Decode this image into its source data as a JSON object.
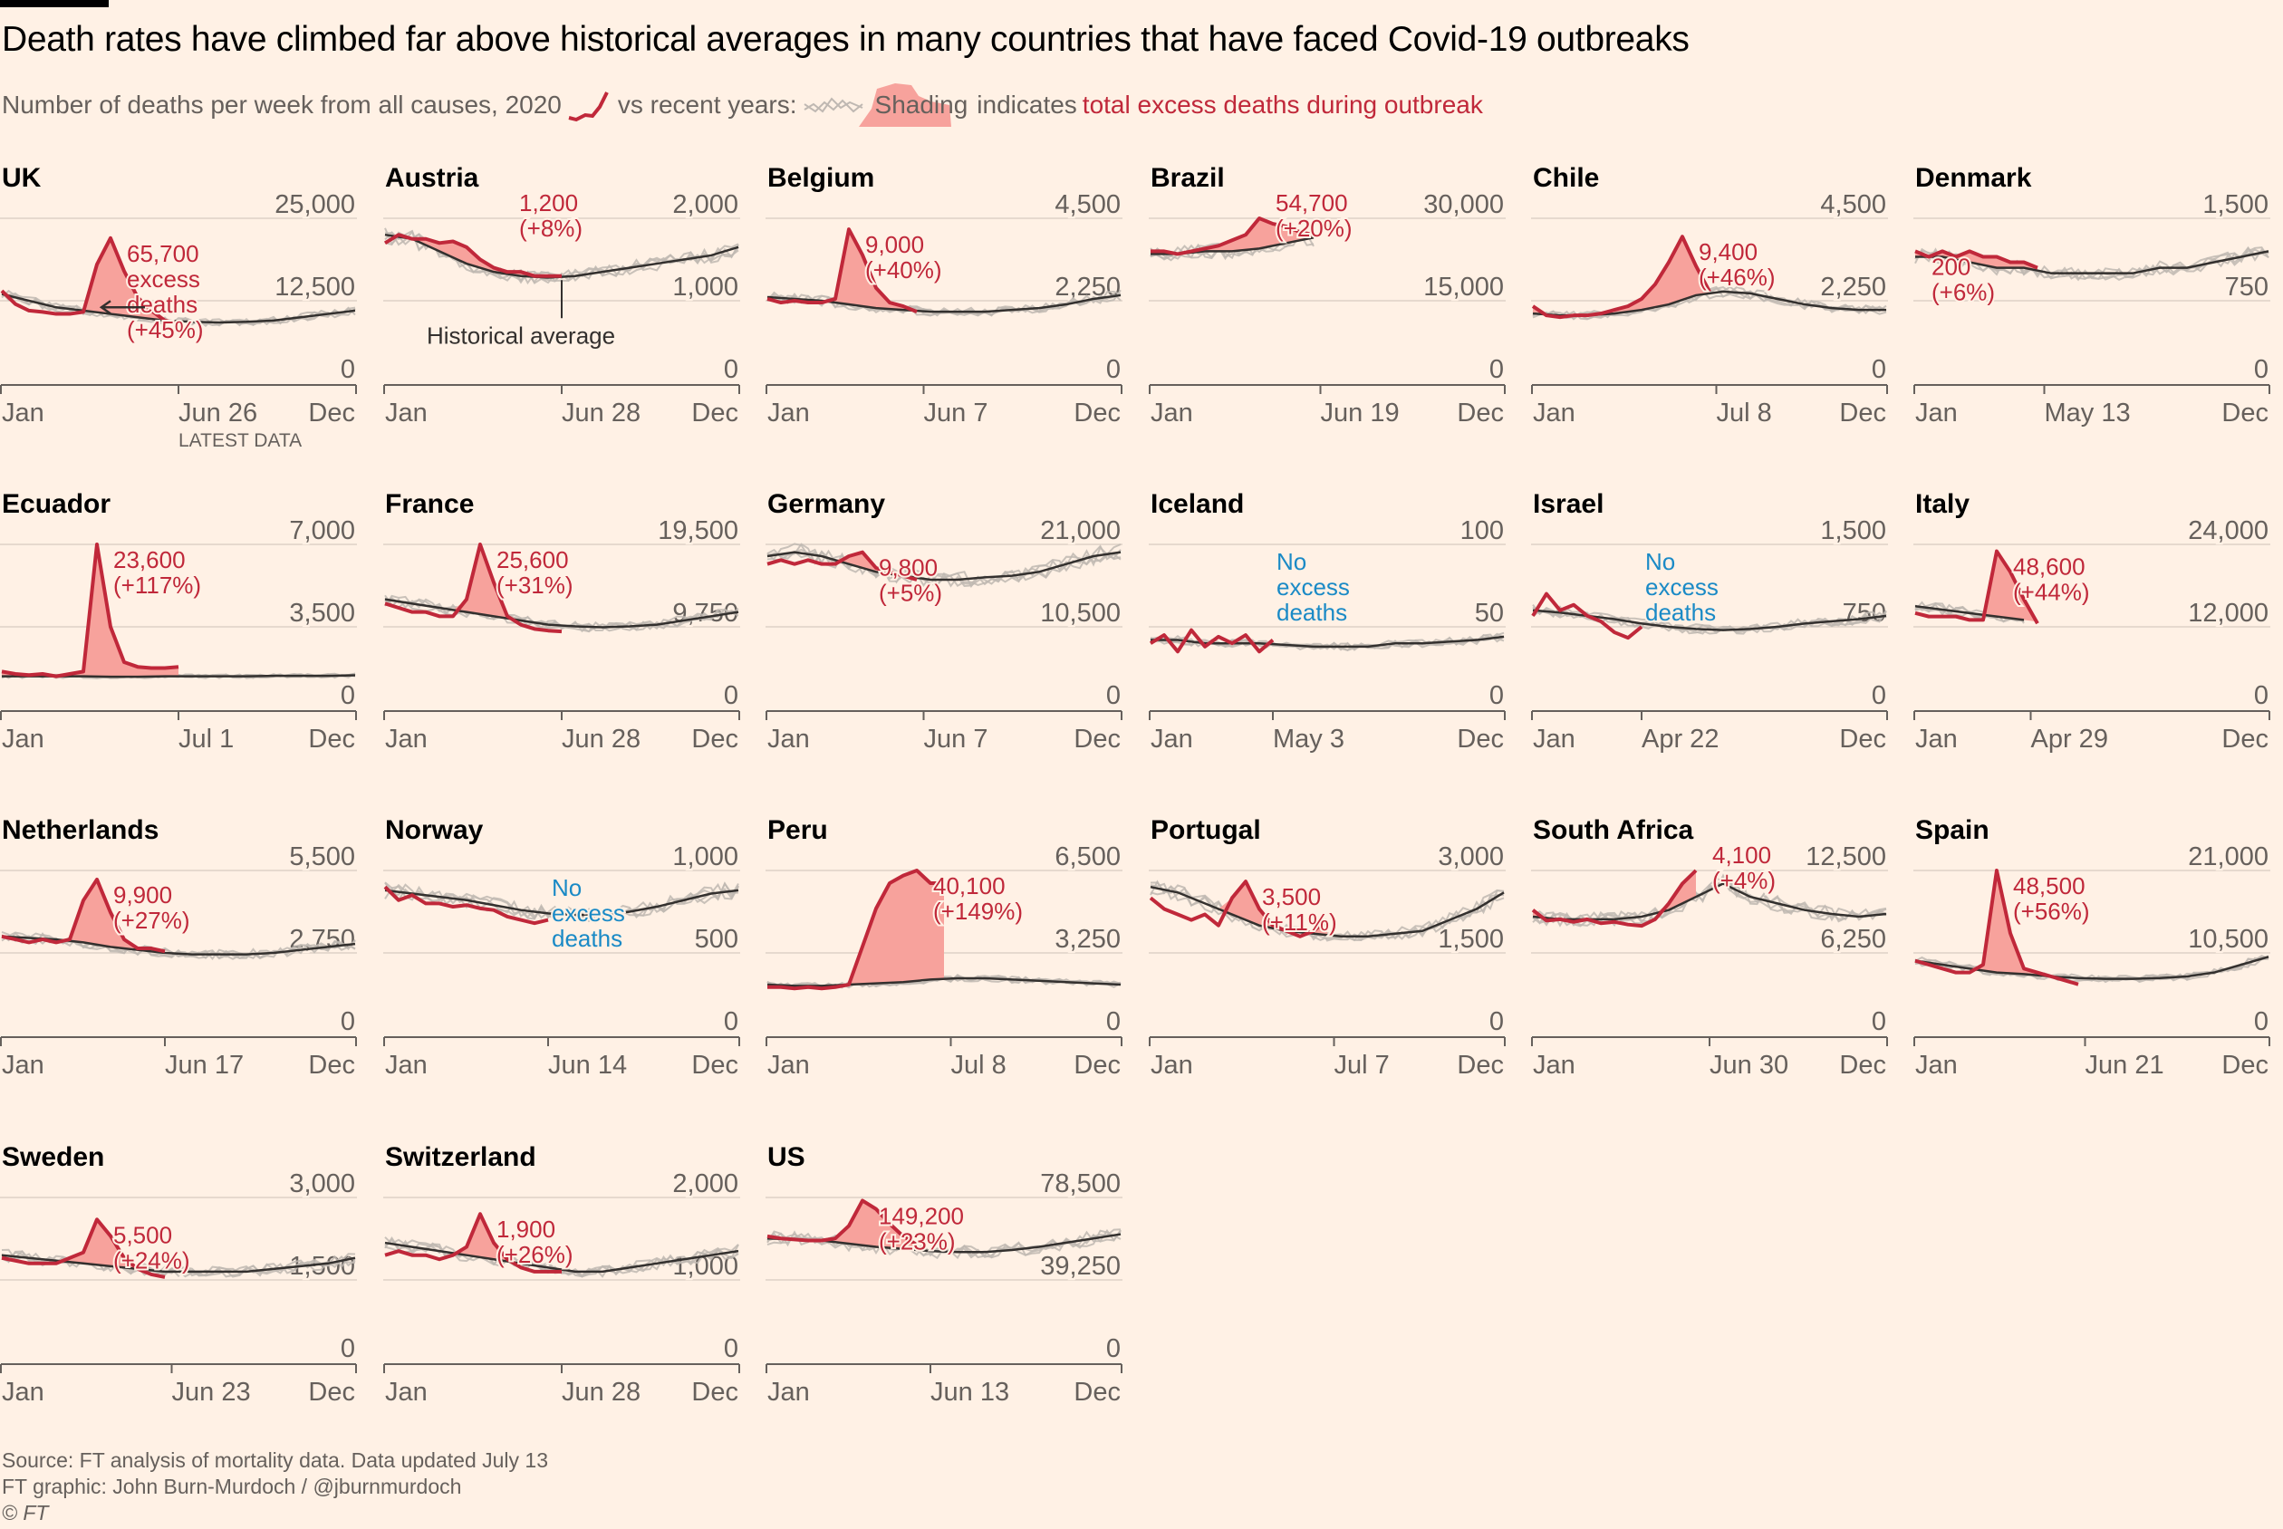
{
  "header": {
    "title": "Death rates have climbed far above historical averages in many countries that have faced Covid-19 outbreaks",
    "subtitle_part1": "Number of deaths per week from all causes, 2020",
    "subtitle_part2": "vs recent years:",
    "subtitle_shading": "Shading",
    "subtitle_part3": "indicates",
    "subtitle_part4": "total excess deaths during outbreak"
  },
  "colors": {
    "background": "#fff1e5",
    "line_2020": "#c0283a",
    "historical": "#33302e",
    "recent_years": "#bfb8b2",
    "shading": "#f7a29c",
    "no_excess": "#1a8ac6"
  },
  "notes": {
    "historical_average": "Historical average",
    "latest_data": "LATEST DATA"
  },
  "footer": {
    "source": "Source: FT analysis of mortality data. Data updated July 13",
    "credit": "FT graphic: John Burn-Murdoch / @jburnmurdoch",
    "copyright": "© FT"
  },
  "chart_data": {
    "type": "line",
    "title": "Death rates have climbed far above historical averages in many countries that have faced Covid-19 outbreaks",
    "ylabel": "Deaths per week",
    "x_unit": "week of year",
    "y2020_step_weeks": 2,
    "avg_step_weeks": 4,
    "panels": [
      {
        "name": "UK",
        "yticks": [
          "0",
          "12,500",
          "25,000"
        ],
        "ymax": 25000,
        "xticks": [
          "Jan",
          "Jun 26",
          "Dec"
        ],
        "latest_week": 26,
        "y2020": [
          14000,
          12000,
          11000,
          10800,
          10500,
          10500,
          10800,
          18000,
          22000,
          17000,
          13000,
          11000,
          9500,
          9000
        ],
        "avg": [
          13500,
          12500,
          11500,
          11000,
          10500,
          10000,
          9500,
          9300,
          9200,
          9300,
          9500,
          10000,
          10500,
          11000
        ],
        "annotation": [
          "65,700",
          "excess",
          "deaths",
          "(+45%)"
        ],
        "annotation_type": "excess"
      },
      {
        "name": "Austria",
        "yticks": [
          "0",
          "1,000",
          "2,000"
        ],
        "ymax": 2000,
        "xticks": [
          "Jan",
          "Jun 28",
          "Dec"
        ],
        "latest_week": 26,
        "y2020": [
          1700,
          1800,
          1750,
          1750,
          1700,
          1720,
          1650,
          1500,
          1400,
          1350,
          1350,
          1300,
          1300,
          1300
        ],
        "avg": [
          1800,
          1750,
          1600,
          1450,
          1350,
          1300,
          1280,
          1300,
          1350,
          1400,
          1450,
          1500,
          1550,
          1650
        ],
        "annotation": [
          "1,200",
          "(+8%)"
        ],
        "annotation_type": "excess"
      },
      {
        "name": "Belgium",
        "yticks": [
          "0",
          "2,250",
          "4,500"
        ],
        "ymax": 4500,
        "xticks": [
          "Jan",
          "Jun 7",
          "Dec"
        ],
        "latest_week": 23,
        "y2020": [
          2300,
          2200,
          2250,
          2200,
          2200,
          2300,
          4200,
          3500,
          2600,
          2200,
          2100,
          1950
        ],
        "avg": [
          2350,
          2300,
          2250,
          2150,
          2050,
          2000,
          1950,
          1950,
          1950,
          2000,
          2050,
          2150,
          2300,
          2400
        ],
        "annotation": [
          "9,000",
          "(+40%)"
        ],
        "annotation_type": "excess"
      },
      {
        "name": "Brazil",
        "yticks": [
          "0",
          "15,000",
          "30,000"
        ],
        "ymax": 30000,
        "xticks": [
          "Jan",
          "Jun 19",
          "Dec"
        ],
        "latest_week": 25,
        "y2020": [
          24000,
          24000,
          23500,
          24000,
          24500,
          25000,
          26000,
          27000,
          30000,
          29000,
          28500,
          27500,
          27000
        ],
        "avg": [
          23500,
          23500,
          24000,
          24000,
          24500,
          25500,
          26500
        ],
        "annotation": [
          "54,700",
          "(+20%)"
        ],
        "annotation_type": "excess"
      },
      {
        "name": "Chile",
        "yticks": [
          "0",
          "2,250",
          "4,500"
        ],
        "ymax": 4500,
        "xticks": [
          "Jan",
          "Jul 8",
          "Dec"
        ],
        "latest_week": 27,
        "y2020": [
          2100,
          1850,
          1800,
          1850,
          1850,
          1900,
          2000,
          2100,
          2300,
          2700,
          3300,
          4000,
          3200,
          2500
        ],
        "avg": [
          1900,
          1850,
          1850,
          1900,
          2000,
          2150,
          2400,
          2500,
          2450,
          2300,
          2150,
          2050,
          2000,
          2000
        ],
        "annotation": [
          "9,400",
          "(+46%)"
        ],
        "annotation_type": "excess"
      },
      {
        "name": "Denmark",
        "yticks": [
          "0",
          "750",
          "1,500"
        ],
        "ymax": 1500,
        "xticks": [
          "Jan",
          "May 13",
          "Dec"
        ],
        "latest_week": 19,
        "y2020": [
          1200,
          1150,
          1200,
          1150,
          1200,
          1150,
          1150,
          1100,
          1100,
          1050
        ],
        "avg": [
          1150,
          1150,
          1100,
          1050,
          1050,
          1000,
          1000,
          1000,
          1000,
          1050,
          1050,
          1100,
          1150,
          1200
        ],
        "annotation": [
          "200",
          "(+6%)"
        ],
        "annotation_type": "excess"
      },
      {
        "name": "Ecuador",
        "yticks": [
          "0",
          "3,500",
          "7,000"
        ],
        "ymax": 7000,
        "xticks": [
          "Jan",
          "Jul 1",
          "Dec"
        ],
        "latest_week": 26,
        "y2020": [
          1600,
          1500,
          1450,
          1500,
          1400,
          1500,
          1600,
          7000,
          3500,
          2000,
          1800,
          1750,
          1750,
          1800
        ],
        "avg": [
          1400,
          1400,
          1400,
          1400,
          1380,
          1380,
          1400,
          1400,
          1400,
          1400,
          1420,
          1420,
          1420,
          1440
        ],
        "annotation": [
          "23,600",
          "(+117%)"
        ],
        "annotation_type": "excess"
      },
      {
        "name": "France",
        "yticks": [
          "0",
          "9,750",
          "19,500"
        ],
        "ymax": 19500,
        "xticks": [
          "Jan",
          "Jun 28",
          "Dec"
        ],
        "latest_week": 26,
        "y2020": [
          12500,
          12000,
          11500,
          11500,
          11000,
          11000,
          13000,
          19500,
          15000,
          11000,
          10000,
          9500,
          9300,
          9200
        ],
        "avg": [
          13000,
          12500,
          12000,
          11500,
          11000,
          10500,
          10000,
          9800,
          9700,
          9800,
          10000,
          10500,
          11000,
          11500
        ],
        "annotation": [
          "25,600",
          "(+31%)"
        ],
        "annotation_type": "excess"
      },
      {
        "name": "Germany",
        "yticks": [
          "0",
          "10,500",
          "21,000"
        ],
        "ymax": 21000,
        "xticks": [
          "Jan",
          "Jun 7",
          "Dec"
        ],
        "latest_week": 23,
        "y2020": [
          18500,
          19000,
          18500,
          19000,
          18500,
          18500,
          19500,
          20000,
          18000,
          17500,
          17000,
          16500
        ],
        "avg": [
          19500,
          20000,
          19500,
          18500,
          17500,
          17000,
          16500,
          16500,
          16800,
          17000,
          17500,
          18500,
          19500,
          20000
        ],
        "annotation": [
          "9,800",
          "(+5%)"
        ],
        "annotation_type": "excess"
      },
      {
        "name": "Iceland",
        "yticks": [
          "0",
          "50",
          "100"
        ],
        "ymax": 100,
        "xticks": [
          "Jan",
          "May 3",
          "Dec"
        ],
        "latest_week": 18,
        "y2020": [
          40,
          45,
          35,
          48,
          38,
          44,
          40,
          45,
          35,
          42
        ],
        "avg": [
          42,
          42,
          40,
          40,
          40,
          39,
          38,
          38,
          38,
          40,
          40,
          41,
          42,
          44
        ],
        "annotation": [
          "No",
          "excess",
          "deaths"
        ],
        "annotation_type": "none"
      },
      {
        "name": "Israel",
        "yticks": [
          "0",
          "750",
          "1,500"
        ],
        "ymax": 1500,
        "xticks": [
          "Jan",
          "Apr 22",
          "Dec"
        ],
        "latest_week": 16,
        "y2020": [
          850,
          1050,
          900,
          950,
          850,
          800,
          700,
          650,
          750
        ],
        "avg": [
          900,
          880,
          850,
          820,
          780,
          750,
          730,
          720,
          730,
          750,
          780,
          800,
          820,
          850
        ],
        "annotation": [
          "No",
          "excess",
          "deaths"
        ],
        "annotation_type": "none"
      },
      {
        "name": "Italy",
        "yticks": [
          "0",
          "12,000",
          "24,000"
        ],
        "ymax": 24000,
        "xticks": [
          "Jan",
          "Apr 29",
          "Dec"
        ],
        "latest_week": 17,
        "y2020": [
          14000,
          13500,
          13500,
          13500,
          13000,
          13000,
          23000,
          20000,
          16000,
          12500
        ],
        "avg": [
          15000,
          14500,
          14000,
          13500,
          13000
        ],
        "annotation": [
          "48,600",
          "(+44%)"
        ],
        "annotation_type": "excess"
      },
      {
        "name": "Netherlands",
        "yticks": [
          "0",
          "2,750",
          "5,500"
        ],
        "ymax": 5500,
        "xticks": [
          "Jan",
          "Jun 17",
          "Dec"
        ],
        "latest_week": 24,
        "y2020": [
          3300,
          3200,
          3100,
          3200,
          3100,
          3200,
          4500,
          5200,
          4100,
          3200,
          2900,
          2900,
          2800
        ],
        "avg": [
          3300,
          3250,
          3200,
          3100,
          2950,
          2850,
          2750,
          2700,
          2700,
          2700,
          2750,
          2850,
          2950,
          3050
        ],
        "annotation": [
          "9,900",
          "(+27%)"
        ],
        "annotation_type": "excess"
      },
      {
        "name": "Norway",
        "yticks": [
          "0",
          "500",
          "1,000"
        ],
        "ymax": 1000,
        "xticks": [
          "Jan",
          "Jun 14",
          "Dec"
        ],
        "latest_week": 24,
        "y2020": [
          900,
          820,
          850,
          800,
          800,
          780,
          790,
          770,
          760,
          720,
          700,
          680,
          700
        ],
        "avg": [
          880,
          860,
          840,
          820,
          790,
          760,
          740,
          730,
          730,
          750,
          780,
          820,
          860,
          880
        ],
        "annotation": [
          "No",
          "excess",
          "deaths"
        ],
        "annotation_type": "none"
      },
      {
        "name": "Peru",
        "yticks": [
          "0",
          "3,250",
          "6,500"
        ],
        "ymax": 6500,
        "xticks": [
          "Jan",
          "Jul 8",
          "Dec"
        ],
        "latest_week": 27,
        "y2020": [
          1900,
          1900,
          1850,
          1900,
          1850,
          1900,
          2000,
          3500,
          5000,
          6000,
          6300,
          6500,
          6000,
          6000
        ],
        "avg": [
          2000,
          1950,
          1950,
          2000,
          2050,
          2100,
          2200,
          2250,
          2250,
          2200,
          2150,
          2100,
          2050,
          2000
        ],
        "annotation": [
          "40,100",
          "(+149%)"
        ],
        "annotation_type": "excess"
      },
      {
        "name": "Portugal",
        "yticks": [
          "0",
          "1,500",
          "3,000"
        ],
        "ymax": 3000,
        "xticks": [
          "Jan",
          "Jul 7",
          "Dec"
        ],
        "latest_week": 27,
        "y2020": [
          2500,
          2300,
          2200,
          2100,
          2200,
          2000,
          2500,
          2800,
          2300,
          2000,
          1900,
          1800,
          1900,
          2100
        ],
        "avg": [
          2700,
          2600,
          2400,
          2200,
          2000,
          1900,
          1850,
          1800,
          1800,
          1850,
          1900,
          2100,
          2300,
          2600
        ],
        "annotation": [
          "3,500",
          "(+11%)"
        ],
        "annotation_type": "excess"
      },
      {
        "name": "South Africa",
        "yticks": [
          "0",
          "6,250",
          "12,500"
        ],
        "ymax": 12500,
        "xticks": [
          "Jan",
          "Jun 30",
          "Dec"
        ],
        "latest_week": 26,
        "y2020": [
          9500,
          8700,
          8800,
          8600,
          8800,
          8500,
          8600,
          8400,
          8300,
          8800,
          10000,
          11500,
          12500
        ],
        "avg": [
          9000,
          8800,
          8800,
          8800,
          9000,
          9500,
          10500,
          11500,
          10500,
          10000,
          9500,
          9200,
          9000,
          9200
        ],
        "annotation": [
          "4,100",
          "(+4%)"
        ],
        "annotation_type": "excess"
      },
      {
        "name": "Spain",
        "yticks": [
          "0",
          "10,500",
          "21,000"
        ],
        "ymax": 21000,
        "xticks": [
          "Jan",
          "Jun 21",
          "Dec"
        ],
        "latest_week": 25,
        "y2020": [
          9500,
          9000,
          8500,
          8000,
          8000,
          9000,
          21000,
          13000,
          8500,
          8000,
          7500,
          7000,
          6500
        ],
        "avg": [
          9500,
          9000,
          8500,
          8000,
          7800,
          7500,
          7300,
          7200,
          7200,
          7300,
          7500,
          8000,
          9000,
          10000
        ],
        "annotation": [
          "48,500",
          "(+56%)"
        ],
        "annotation_type": "excess"
      },
      {
        "name": "Sweden",
        "yticks": [
          "0",
          "1,500",
          "3,000"
        ],
        "ymax": 3000,
        "xticks": [
          "Jan",
          "Jun 23",
          "Dec"
        ],
        "latest_week": 25,
        "y2020": [
          1900,
          1850,
          1800,
          1800,
          1800,
          1900,
          2000,
          2600,
          2300,
          1900,
          1700,
          1600,
          1550
        ],
        "avg": [
          1950,
          1900,
          1850,
          1800,
          1750,
          1700,
          1650,
          1650,
          1650,
          1650,
          1700,
          1750,
          1800,
          1900
        ],
        "annotation": [
          "5,500",
          "(+24%)"
        ],
        "annotation_type": "excess"
      },
      {
        "name": "Switzerland",
        "yticks": [
          "0",
          "1,000",
          "2,000"
        ],
        "ymax": 2000,
        "xticks": [
          "Jan",
          "Jun 28",
          "Dec"
        ],
        "latest_week": 26,
        "y2020": [
          1300,
          1350,
          1300,
          1300,
          1250,
          1300,
          1400,
          1800,
          1450,
          1250,
          1150,
          1100,
          1100,
          1100
        ],
        "avg": [
          1450,
          1400,
          1350,
          1300,
          1250,
          1200,
          1150,
          1100,
          1100,
          1150,
          1200,
          1250,
          1300,
          1350
        ],
        "annotation": [
          "1,900",
          "(+26%)"
        ],
        "annotation_type": "excess"
      },
      {
        "name": "US",
        "yticks": [
          "0",
          "39,250",
          "78,500"
        ],
        "ymax": 78500,
        "xticks": [
          "Jan",
          "Jun 13",
          "Dec"
        ],
        "latest_week": 24,
        "y2020": [
          60000,
          59000,
          58500,
          58000,
          58000,
          59000,
          65000,
          77000,
          73000,
          66000,
          60000,
          56000
        ],
        "avg": [
          59000,
          58500,
          58000,
          56500,
          55000,
          54000,
          53000,
          52500,
          52500,
          53500,
          55000,
          57000,
          59000,
          61000
        ],
        "annotation": [
          "149,200",
          "(+23%)"
        ],
        "annotation_type": "excess"
      }
    ]
  }
}
